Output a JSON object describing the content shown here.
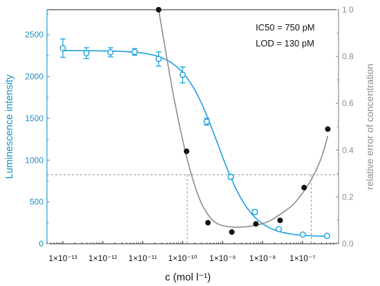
{
  "chart_data": {
    "type": "scatter",
    "annotations": [
      "IC50 = 750 pM",
      "LOD = 130 pM"
    ],
    "xlabel": "c (mol l⁻¹)",
    "ylabel_left": "Luminescence intensity",
    "ylabel_right": "relative error of concentration",
    "x_scale": "log",
    "xlim": [
      4e-14,
      8e-07
    ],
    "ylim_left": [
      0,
      2800
    ],
    "ylim_right": [
      0,
      1.0
    ],
    "x_tick_labels": [
      "1×10⁻¹³",
      "1×10⁻¹²",
      "1×10⁻¹¹",
      "1×10⁻¹⁰",
      "1×10⁻⁹",
      "1×10⁻⁸",
      "1×10⁻⁷"
    ],
    "x_ticks": [
      1e-13,
      1e-12,
      1e-11,
      1e-10,
      1e-09,
      1e-08,
      1e-07
    ],
    "y_left_ticks": [
      0,
      500,
      1000,
      1500,
      2000,
      2500
    ],
    "y_left_tick_labels": [
      "0",
      "500",
      "1000",
      "1500",
      "2000",
      "2500"
    ],
    "y_right_ticks": [
      0,
      0.2,
      0.4,
      0.6,
      0.8,
      1.0
    ],
    "y_right_tick_labels": [
      "0.0",
      "0.2",
      "0.4",
      "0.6",
      "0.8",
      "1.0"
    ],
    "colors": {
      "blue": "#1a9fdc",
      "gray": "#8c8c8c",
      "black": "#111111",
      "ref": "#8c8c8c"
    },
    "series": [
      {
        "axis": "left",
        "style": "open-circle-errorbar",
        "x": [
          1e-13,
          3.9e-13,
          1.56e-12,
          6.25e-12,
          2.5e-11,
          1e-10,
          4e-10,
          1.6e-09,
          6.4e-09,
          2.56e-08,
          1.02e-07,
          4.1e-07
        ],
        "y": [
          2340,
          2280,
          2290,
          2295,
          2210,
          2020,
          1460,
          800,
          380,
          175,
          110,
          95
        ],
        "err": [
          110,
          65,
          55,
          40,
          85,
          95,
          40,
          25,
          25,
          12,
          12,
          12
        ]
      },
      {
        "axis": "left",
        "style": "fit-line",
        "model": "four-parameter logistic",
        "top": 2310,
        "bottom": 85,
        "ic50": 7.5e-10,
        "hill": 1.0
      },
      {
        "axis": "right",
        "style": "filled-circle",
        "x": [
          2.5e-11,
          1.25e-10,
          4.3e-10,
          1.7e-09,
          6.8e-09,
          2.75e-08,
          1.1e-07,
          4.3e-07
        ],
        "y": [
          1.0,
          0.395,
          0.09,
          0.05,
          0.085,
          0.1,
          0.24,
          0.49
        ]
      },
      {
        "axis": "right",
        "style": "fit-line",
        "x": [
          2.5e-11,
          3.6e-11,
          5.5e-11,
          8e-11,
          1.3e-10,
          2e-10,
          3e-10,
          5e-10,
          8e-10,
          1.3e-09,
          2e-09,
          3.6e-09,
          6e-09,
          1e-08,
          1.6e-08,
          3e-08,
          6e-08,
          1.2e-07,
          2e-07,
          3e-07,
          4.3e-07
        ],
        "y": [
          1.0,
          0.84,
          0.66,
          0.52,
          0.36,
          0.25,
          0.17,
          0.11,
          0.083,
          0.074,
          0.071,
          0.072,
          0.077,
          0.086,
          0.1,
          0.13,
          0.17,
          0.235,
          0.3,
          0.37,
          0.46
        ]
      }
    ],
    "reference_lines": {
      "lod_response_left": 825,
      "lod_x": 1.3e-10,
      "upper_x": 1.65e-07
    },
    "grid": false,
    "legend": "none"
  }
}
